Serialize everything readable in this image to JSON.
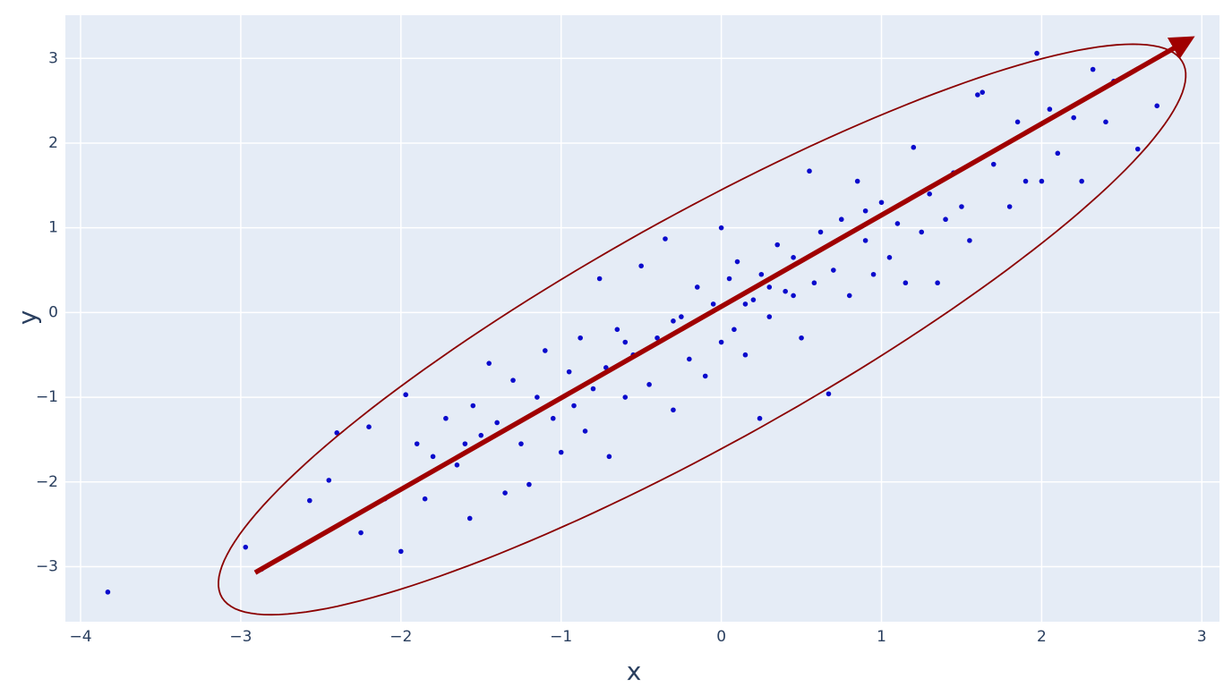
{
  "chart_data": {
    "type": "scatter",
    "x_label": "x",
    "y_label": "y",
    "x": [
      -3.83,
      -2.97,
      -2.87,
      -2.57,
      -2.4,
      -2.45,
      -2.25,
      -2.2,
      -2.1,
      -2.0,
      -1.97,
      -1.9,
      -1.85,
      -1.8,
      -1.72,
      -1.65,
      -1.57,
      -1.55,
      -1.5,
      -1.45,
      -1.4,
      -1.35,
      -1.3,
      -1.25,
      -1.2,
      -1.15,
      -1.1,
      -1.05,
      -1.0,
      -0.95,
      -0.92,
      -0.88,
      -0.85,
      -0.8,
      -0.76,
      -0.72,
      -0.7,
      -0.65,
      -0.6,
      -0.55,
      -0.5,
      -0.45,
      -0.4,
      -0.35,
      -0.3,
      -0.25,
      -0.2,
      -0.15,
      -0.1,
      -0.05,
      0.0,
      0.0,
      0.05,
      0.08,
      0.1,
      0.15,
      0.2,
      0.24,
      0.25,
      0.3,
      0.35,
      0.4,
      0.45,
      0.5,
      0.55,
      0.58,
      0.62,
      0.67,
      0.7,
      0.75,
      0.8,
      0.85,
      0.9,
      0.95,
      1.0,
      1.05,
      1.1,
      1.15,
      1.2,
      1.25,
      1.3,
      1.35,
      1.4,
      1.45,
      1.5,
      1.55,
      1.6,
      1.63,
      1.7,
      1.8,
      1.85,
      1.9,
      1.97,
      2.0,
      2.05,
      2.1,
      2.2,
      2.25,
      2.32,
      2.4,
      2.45,
      2.6,
      2.72,
      -1.6,
      -0.3,
      0.3,
      0.45,
      -0.6,
      0.15,
      0.9
    ],
    "y": [
      -3.3,
      -2.77,
      -3.03,
      -2.22,
      -1.42,
      -1.98,
      -2.6,
      -1.35,
      -2.2,
      -2.82,
      -0.97,
      -1.55,
      -2.2,
      -1.7,
      -1.25,
      -1.8,
      -2.43,
      -1.1,
      -1.45,
      -0.6,
      -1.3,
      -2.13,
      -0.8,
      -1.55,
      -2.03,
      -1.0,
      -0.45,
      -1.25,
      -1.65,
      -0.7,
      -1.1,
      -0.3,
      -1.4,
      -0.9,
      0.4,
      -0.65,
      -1.7,
      -0.2,
      -1.0,
      -0.5,
      0.55,
      -0.85,
      -0.3,
      0.87,
      -1.15,
      -0.05,
      -0.55,
      0.3,
      -0.75,
      0.1,
      -0.35,
      1.0,
      0.4,
      -0.2,
      0.6,
      -0.5,
      0.15,
      -1.25,
      0.45,
      -0.05,
      0.8,
      0.25,
      0.65,
      -0.3,
      1.67,
      0.35,
      0.95,
      -0.96,
      0.5,
      1.1,
      0.2,
      1.55,
      0.85,
      0.45,
      1.3,
      0.65,
      1.05,
      0.35,
      1.95,
      0.95,
      1.4,
      0.35,
      1.1,
      1.65,
      1.25,
      0.85,
      2.57,
      2.6,
      1.75,
      1.25,
      2.25,
      1.55,
      3.06,
      1.55,
      2.4,
      1.88,
      2.3,
      1.55,
      2.87,
      2.25,
      2.73,
      1.93,
      2.44,
      -1.55,
      -0.1,
      0.3,
      0.2,
      -0.35,
      0.1,
      1.2
    ],
    "color": "#0a0acc",
    "ellipse": {
      "center": [
        -0.12,
        -0.2
      ],
      "semi_axes": [
        4.4,
        1.05
      ],
      "angle_deg": 48.5,
      "color": "#8b0000"
    },
    "arrow": {
      "x": [
        -2.91,
        2.89
      ],
      "y": [
        -3.07,
        3.19
      ],
      "color": "#a00000"
    },
    "xlim": [
      -4.095,
      3.11
    ],
    "ylim": [
      -3.65,
      3.51
    ],
    "xticks": [
      {
        "value": -4,
        "label": "−4"
      },
      {
        "value": -3,
        "label": "−3"
      },
      {
        "value": -2,
        "label": "−2"
      },
      {
        "value": -1,
        "label": "−1"
      },
      0,
      1,
      2,
      3
    ],
    "yticks": [
      {
        "value": -3,
        "label": "−3"
      },
      {
        "value": -2,
        "label": "−2"
      },
      {
        "value": -1,
        "label": "−1"
      },
      0,
      1,
      2,
      3
    ],
    "grid": true
  }
}
